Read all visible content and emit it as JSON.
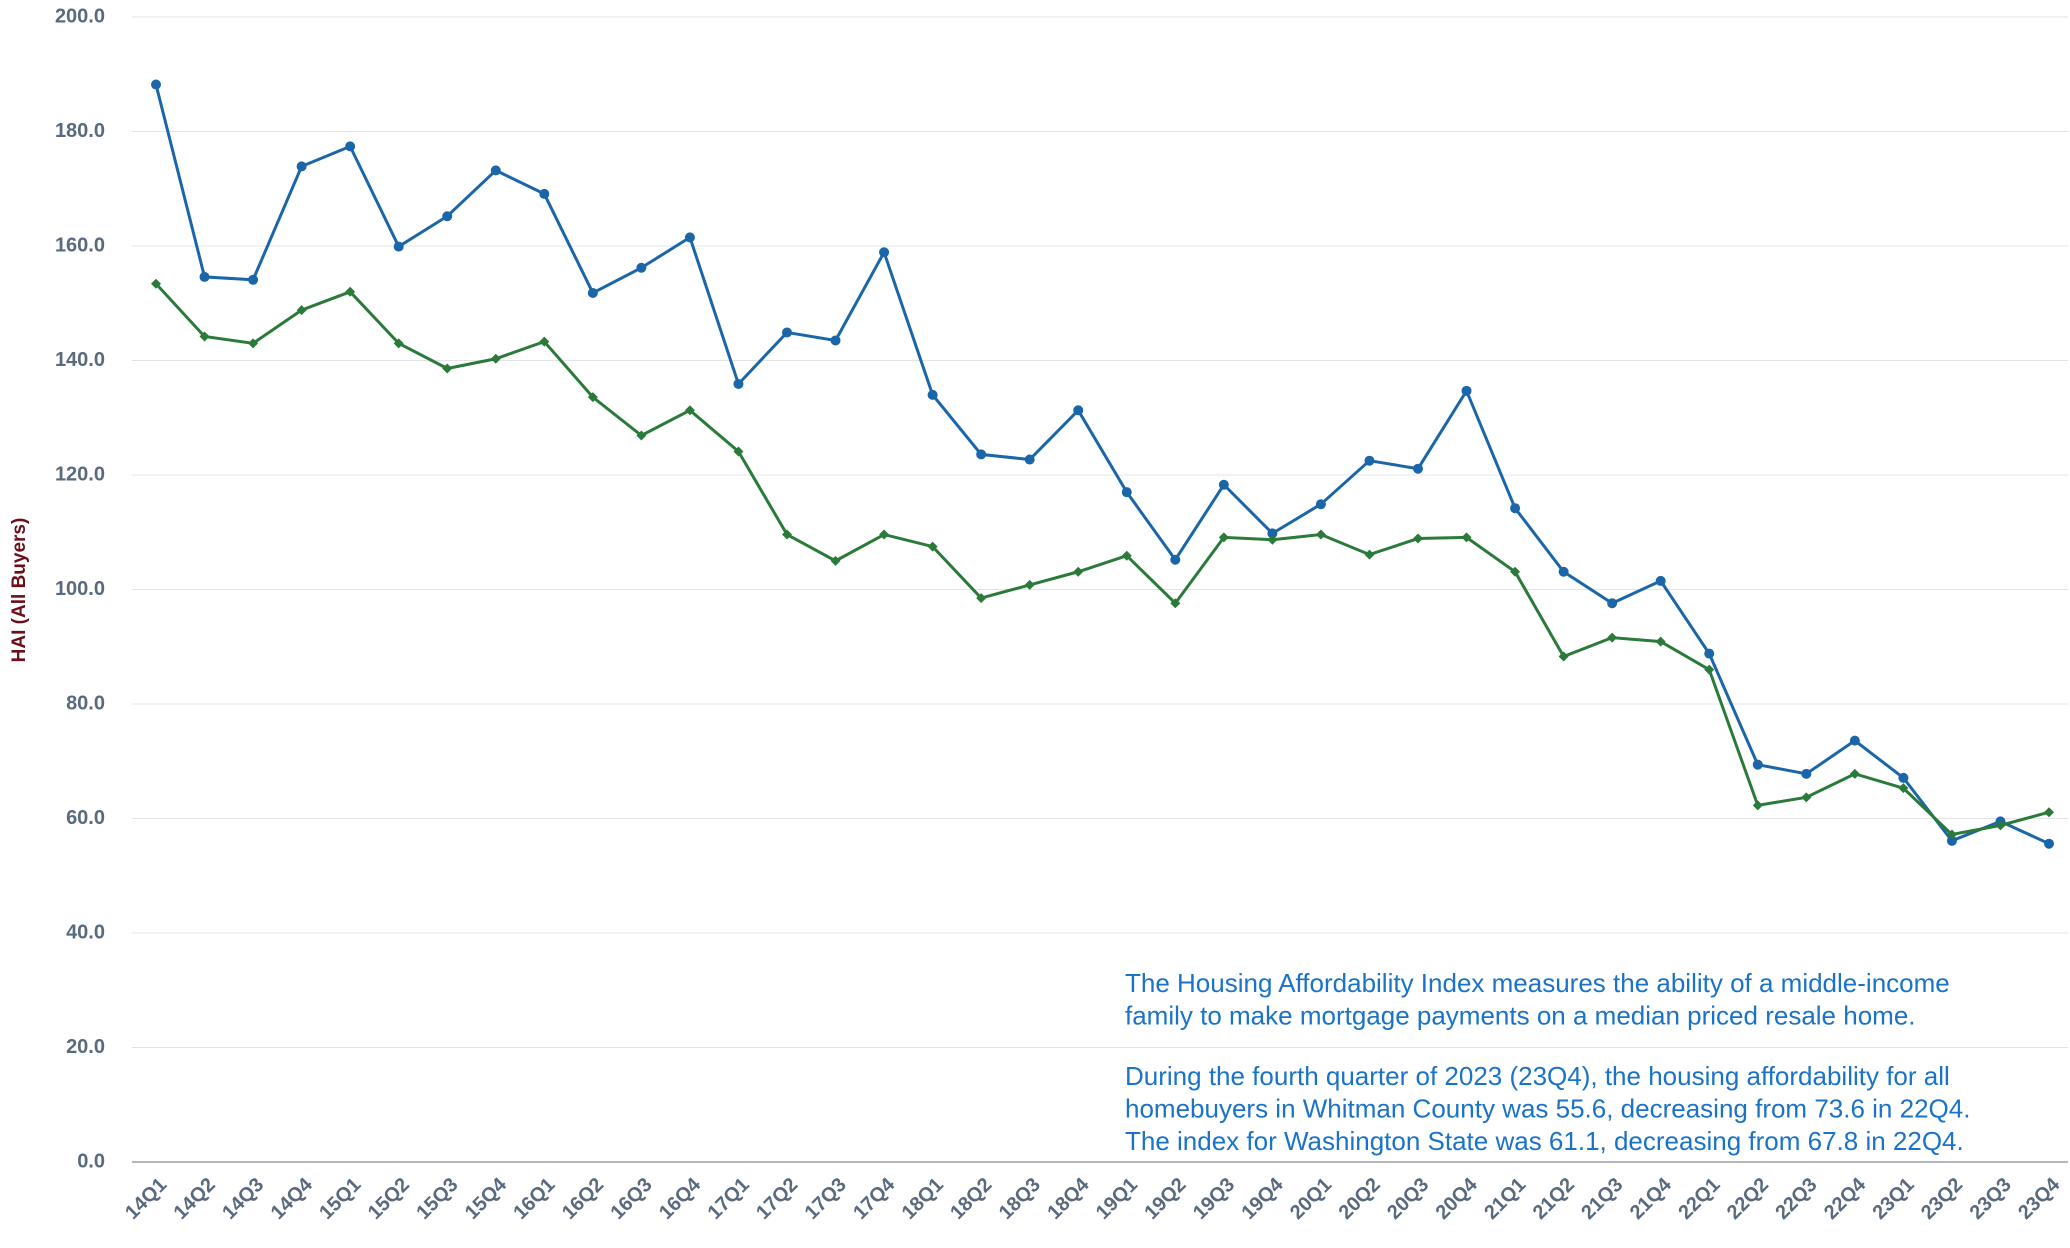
{
  "chart_data": {
    "type": "line",
    "y_label": "HAI (All Buyers)",
    "categories": [
      "14Q1",
      "14Q2",
      "14Q3",
      "14Q4",
      "15Q1",
      "15Q2",
      "15Q3",
      "15Q4",
      "16Q1",
      "16Q2",
      "16Q3",
      "16Q4",
      "17Q1",
      "17Q2",
      "17Q3",
      "17Q4",
      "18Q1",
      "18Q2",
      "18Q3",
      "18Q4",
      "19Q1",
      "19Q2",
      "19Q3",
      "19Q4",
      "20Q1",
      "20Q2",
      "20Q3",
      "20Q4",
      "21Q1",
      "21Q2",
      "21Q3",
      "21Q4",
      "22Q1",
      "22Q2",
      "22Q3",
      "22Q4",
      "23Q1",
      "23Q2",
      "23Q3",
      "23Q4"
    ],
    "series": [
      {
        "color": "#1a66a8",
        "marker": "circle",
        "values": [
          188.2,
          154.6,
          154.1,
          173.9,
          177.4,
          159.9,
          165.2,
          173.2,
          169.1,
          151.8,
          156.2,
          161.5,
          135.9,
          144.9,
          143.5,
          158.9,
          134.0,
          123.6,
          122.7,
          131.3,
          117.0,
          105.2,
          118.3,
          109.8,
          114.9,
          122.5,
          121.1,
          134.7,
          114.2,
          103.1,
          97.6,
          101.5,
          88.8,
          69.4,
          67.8,
          73.6,
          67.1,
          56.1,
          59.5,
          55.6
        ]
      },
      {
        "color": "#2a7a3a",
        "marker": "diamond",
        "values": [
          153.4,
          144.2,
          143.0,
          148.8,
          152.0,
          143.0,
          138.6,
          140.3,
          143.3,
          133.6,
          126.9,
          131.3,
          124.1,
          109.6,
          105.0,
          109.6,
          107.5,
          98.5,
          100.8,
          103.1,
          105.9,
          97.6,
          109.1,
          108.7,
          109.6,
          106.1,
          108.9,
          109.1,
          103.1,
          88.3,
          91.6,
          90.9,
          86.0,
          62.3,
          63.7,
          67.8,
          65.3,
          57.2,
          58.8,
          61.1
        ]
      }
    ],
    "ylim": [
      0,
      200
    ],
    "yticks": [
      {
        "value": 0,
        "label": "0.0"
      },
      {
        "value": 20,
        "label": "20.0"
      },
      {
        "value": 40,
        "label": "40.0"
      },
      {
        "value": 60,
        "label": "60.0"
      },
      {
        "value": 80,
        "label": "80.0"
      },
      {
        "value": 100,
        "label": "100.0"
      },
      {
        "value": 120,
        "label": "120.0"
      },
      {
        "value": 140,
        "label": "140.0"
      },
      {
        "value": 160,
        "label": "160.0"
      },
      {
        "value": 180,
        "label": "180.0"
      },
      {
        "value": 200,
        "label": "200.0"
      }
    ],
    "grid": true,
    "annotation": {
      "paragraphs": [
        [
          "The Housing Affordability Index measures the ability of a middle-income",
          "family to make mortgage payments on a median priced resale home."
        ],
        [
          "During the fourth quarter of 2023 (23Q4), the housing affordability for all",
          "homebuyers in Whitman County was 55.6, decreasing from 73.6 in 22Q4.",
          "The index for Washington State was 61.1, decreasing from 67.8 in 22Q4."
        ]
      ]
    }
  }
}
